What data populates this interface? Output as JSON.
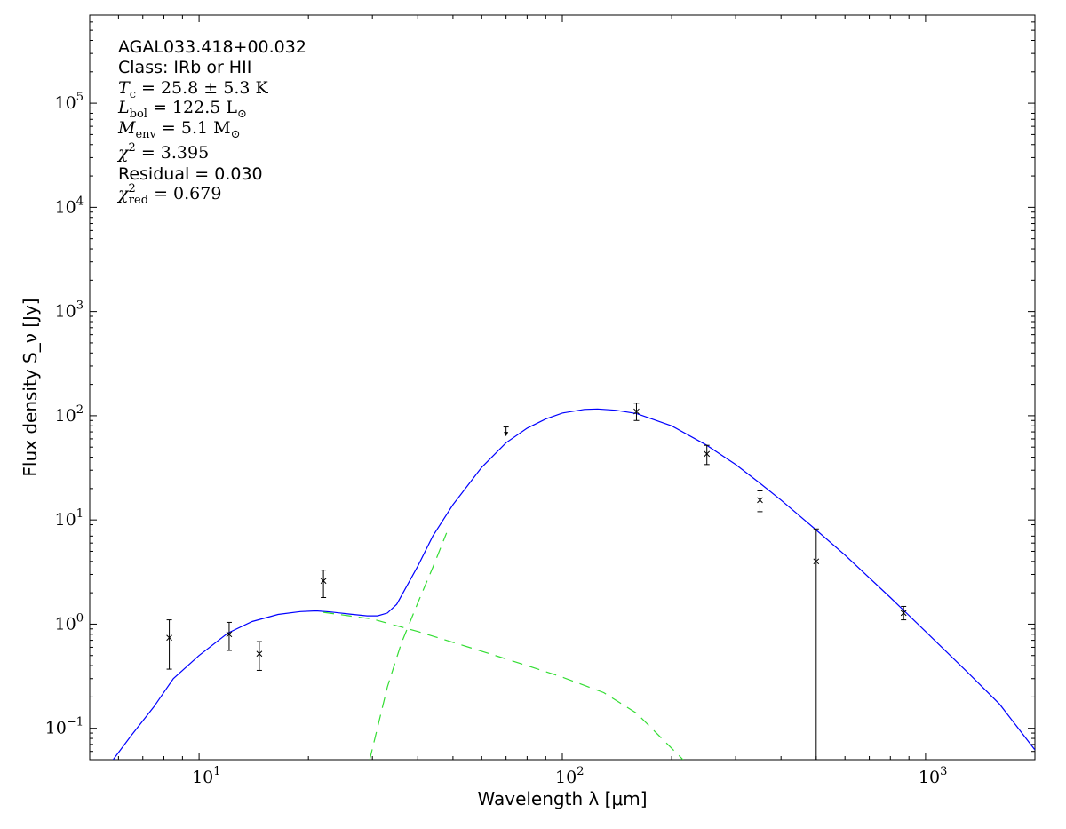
{
  "chart_data": {
    "type": "scatter",
    "xlabel": "Wavelength λ [μm]",
    "ylabel": "Flux density S_ν [Jy]",
    "xscale": "log",
    "yscale": "log",
    "xlim": [
      5,
      2000
    ],
    "ylim": [
      0.05,
      700000
    ],
    "grid": false,
    "x_ticks": [
      {
        "value": 10,
        "base": "10",
        "exp": "1"
      },
      {
        "value": 100,
        "base": "10",
        "exp": "2"
      },
      {
        "value": 1000,
        "base": "10",
        "exp": "3"
      }
    ],
    "y_ticks": [
      {
        "value": 0.1,
        "base": "10",
        "exp": "−1"
      },
      {
        "value": 1,
        "base": "10",
        "exp": "0"
      },
      {
        "value": 10,
        "base": "10",
        "exp": "1"
      },
      {
        "value": 100,
        "base": "10",
        "exp": "2"
      },
      {
        "value": 1000,
        "base": "10",
        "exp": "3"
      },
      {
        "value": 10000,
        "base": "10",
        "exp": "4"
      },
      {
        "value": 100000,
        "base": "10",
        "exp": "5"
      }
    ],
    "annotations": {
      "source": "AGAL033.418+00.032",
      "class_line": "Class: IRb or HII",
      "tc": {
        "sym": "T",
        "sub": "c",
        "rest": " = 25.8 ± 5.3 K"
      },
      "lbol": {
        "sym": "L",
        "sub": "bol",
        "rest": " = 122.5 L",
        "tail": "⊙"
      },
      "menv": {
        "sym": "M",
        "sub": "env",
        "rest": " = 5.1 M",
        "tail": "⊙"
      },
      "chi2": {
        "sym": "χ",
        "sup": "2",
        "rest": " = 3.395"
      },
      "residual": "Residual = 0.030",
      "chi2red": {
        "sym": "χ",
        "sup": "2",
        "sub": "red",
        "rest": " = 0.679"
      }
    },
    "points": [
      {
        "x": 8.28,
        "y": 0.74,
        "ylo": 0.37,
        "yhi": 1.1
      },
      {
        "x": 12.1,
        "y": 0.8,
        "ylo": 0.56,
        "yhi": 1.04
      },
      {
        "x": 14.65,
        "y": 0.52,
        "ylo": 0.36,
        "yhi": 0.68
      },
      {
        "x": 22.0,
        "y": 2.6,
        "ylo": 1.8,
        "yhi": 3.3
      },
      {
        "x": 160,
        "y": 110,
        "ylo": 90,
        "yhi": 132
      },
      {
        "x": 250,
        "y": 43,
        "ylo": 34,
        "yhi": 52
      },
      {
        "x": 350,
        "y": 15.5,
        "ylo": 12,
        "yhi": 19
      },
      {
        "x": 500,
        "y": 4.0,
        "ylo": 0.0001,
        "yhi": 8.2
      },
      {
        "x": 870,
        "y": 1.28,
        "ylo": 1.1,
        "yhi": 1.48
      }
    ],
    "upper_limits": [
      {
        "x": 70,
        "y": 70,
        "top": 78
      }
    ],
    "series": [
      {
        "style": "solid",
        "color": "#0000ff",
        "points": [
          [
            5.8,
            0.05
          ],
          [
            6.5,
            0.085
          ],
          [
            7.5,
            0.16
          ],
          [
            8.5,
            0.3
          ],
          [
            10,
            0.5
          ],
          [
            12,
            0.82
          ],
          [
            14,
            1.06
          ],
          [
            16.5,
            1.24
          ],
          [
            19,
            1.32
          ],
          [
            21,
            1.34
          ],
          [
            23,
            1.31
          ],
          [
            26,
            1.25
          ],
          [
            29,
            1.2
          ],
          [
            31,
            1.2
          ],
          [
            33,
            1.28
          ],
          [
            35,
            1.55
          ],
          [
            37,
            2.2
          ],
          [
            40,
            3.6
          ],
          [
            44,
            7.0
          ],
          [
            50,
            14.0
          ],
          [
            60,
            32.0
          ],
          [
            70,
            55.0
          ],
          [
            80,
            76.0
          ],
          [
            90,
            93.0
          ],
          [
            100,
            106.0
          ],
          [
            115,
            115.0
          ],
          [
            125,
            116.0
          ],
          [
            140,
            113.0
          ],
          [
            160,
            105.0
          ],
          [
            200,
            80.0
          ],
          [
            250,
            52.0
          ],
          [
            300,
            34.0
          ],
          [
            350,
            22.5
          ],
          [
            400,
            15.5
          ],
          [
            500,
            8.0
          ],
          [
            600,
            4.6
          ],
          [
            800,
            1.8
          ],
          [
            1000,
            0.85
          ],
          [
            1300,
            0.35
          ],
          [
            1600,
            0.17
          ],
          [
            2000,
            0.062
          ]
        ]
      },
      {
        "style": "dashed",
        "color": "#33dd33",
        "points": [
          [
            29.5,
            0.05
          ],
          [
            33,
            0.25
          ],
          [
            36,
            0.65
          ],
          [
            40,
            1.6
          ],
          [
            44,
            3.5
          ],
          [
            48,
            7.5
          ]
        ]
      },
      {
        "style": "dashed",
        "color": "#33dd33",
        "points": [
          [
            22,
            1.3
          ],
          [
            30,
            1.12
          ],
          [
            40,
            0.85
          ],
          [
            60,
            0.55
          ],
          [
            80,
            0.4
          ],
          [
            100,
            0.31
          ],
          [
            130,
            0.22
          ],
          [
            160,
            0.14
          ],
          [
            215,
            0.05
          ]
        ]
      }
    ]
  }
}
